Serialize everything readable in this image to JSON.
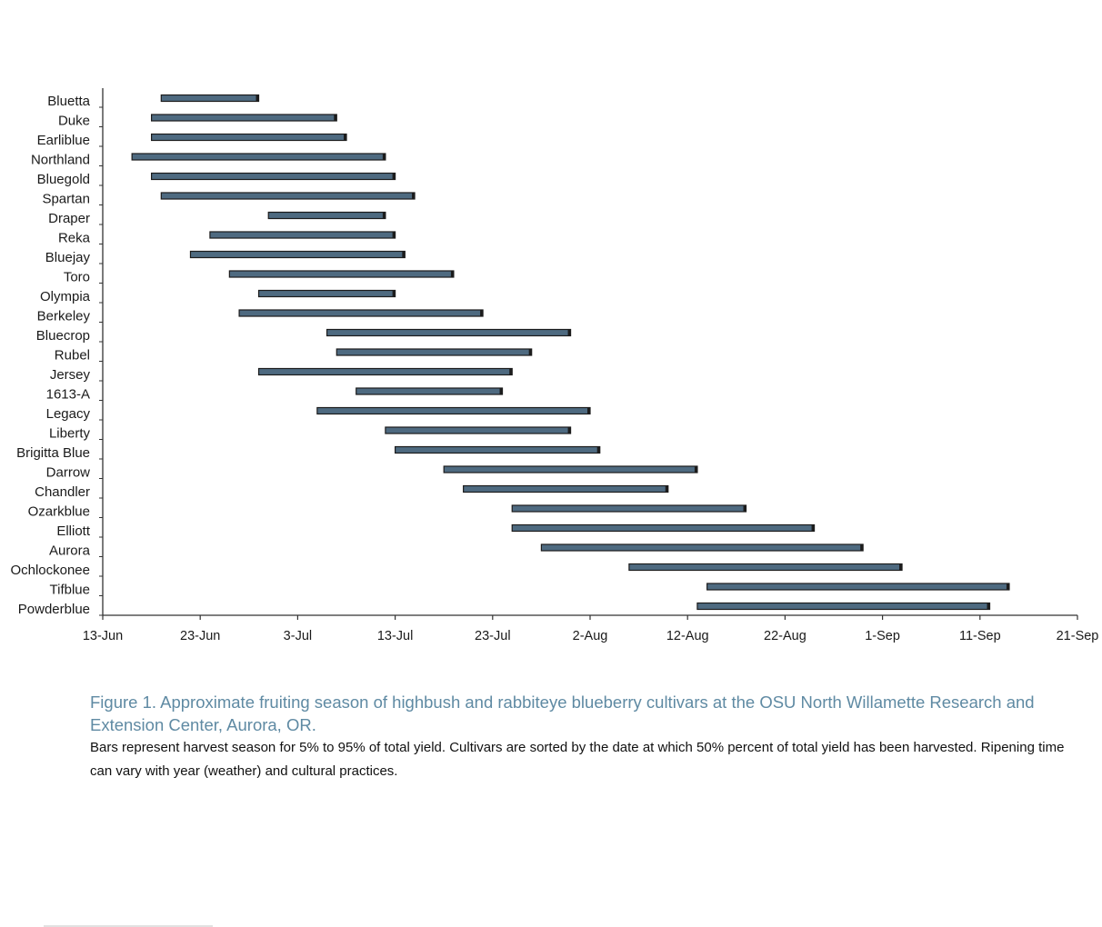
{
  "caption": {
    "title": "Figure 1. Approximate fruiting season of highbush and rabbiteye blueberry cultivars at the OSU North Willamette Research and Extension Center, Aurora, OR.",
    "body": "Bars represent harvest season for 5% to 95% of total yield. Cultivars are sorted by the date at which 50% percent of total yield has been harvested. Ripening time can vary with year (weather) and cultural practices."
  },
  "chart_data": {
    "type": "bar",
    "orientation": "horizontal-range",
    "bar_color": "#4e6a80",
    "xlim": [
      "13-Jun",
      "21-Sep"
    ],
    "x_ticks": [
      "13-Jun",
      "23-Jun",
      "3-Jul",
      "13-Jul",
      "23-Jul",
      "2-Aug",
      "12-Aug",
      "22-Aug",
      "1-Sep",
      "11-Sep",
      "21-Sep"
    ],
    "categories": [
      "Bluetta",
      "Duke",
      "Earliblue",
      "Northland",
      "Bluegold",
      "Spartan",
      "Draper",
      "Reka",
      "Bluejay",
      "Toro",
      "Olympia",
      "Berkeley",
      "Bluecrop",
      "Rubel",
      "Jersey",
      "1613-A",
      "Legacy",
      "Liberty",
      "Brigitta Blue",
      "Darrow",
      "Chandler",
      "Ozarkblue",
      "Elliott",
      "Aurora",
      "Ochlockonee",
      "Tifblue",
      "Powderblue"
    ],
    "series": [
      {
        "start": [
          "19-Jun",
          "18-Jun",
          "18-Jun",
          "16-Jun",
          "18-Jun",
          "19-Jun",
          "30-Jun",
          "24-Jun",
          "22-Jun",
          "26-Jun",
          "29-Jun",
          "27-Jun",
          "6-Jul",
          "7-Jul",
          "29-Jun",
          "9-Jul",
          "5-Jul",
          "12-Jul",
          "13-Jul",
          "18-Jul",
          "20-Jul",
          "25-Jul",
          "25-Jul",
          "28-Jul",
          "6-Aug",
          "14-Aug",
          "13-Aug"
        ],
        "end": [
          "29-Jun",
          "7-Jul",
          "8-Jul",
          "12-Jul",
          "13-Jul",
          "15-Jul",
          "12-Jul",
          "13-Jul",
          "14-Jul",
          "19-Jul",
          "13-Jul",
          "22-Jul",
          "31-Jul",
          "27-Jul",
          "25-Jul",
          "24-Jul",
          "2-Aug",
          "31-Jul",
          "3-Aug",
          "13-Aug",
          "10-Aug",
          "18-Aug",
          "25-Aug",
          "30-Aug",
          "3-Sep",
          "14-Sep",
          "12-Sep"
        ]
      }
    ]
  }
}
